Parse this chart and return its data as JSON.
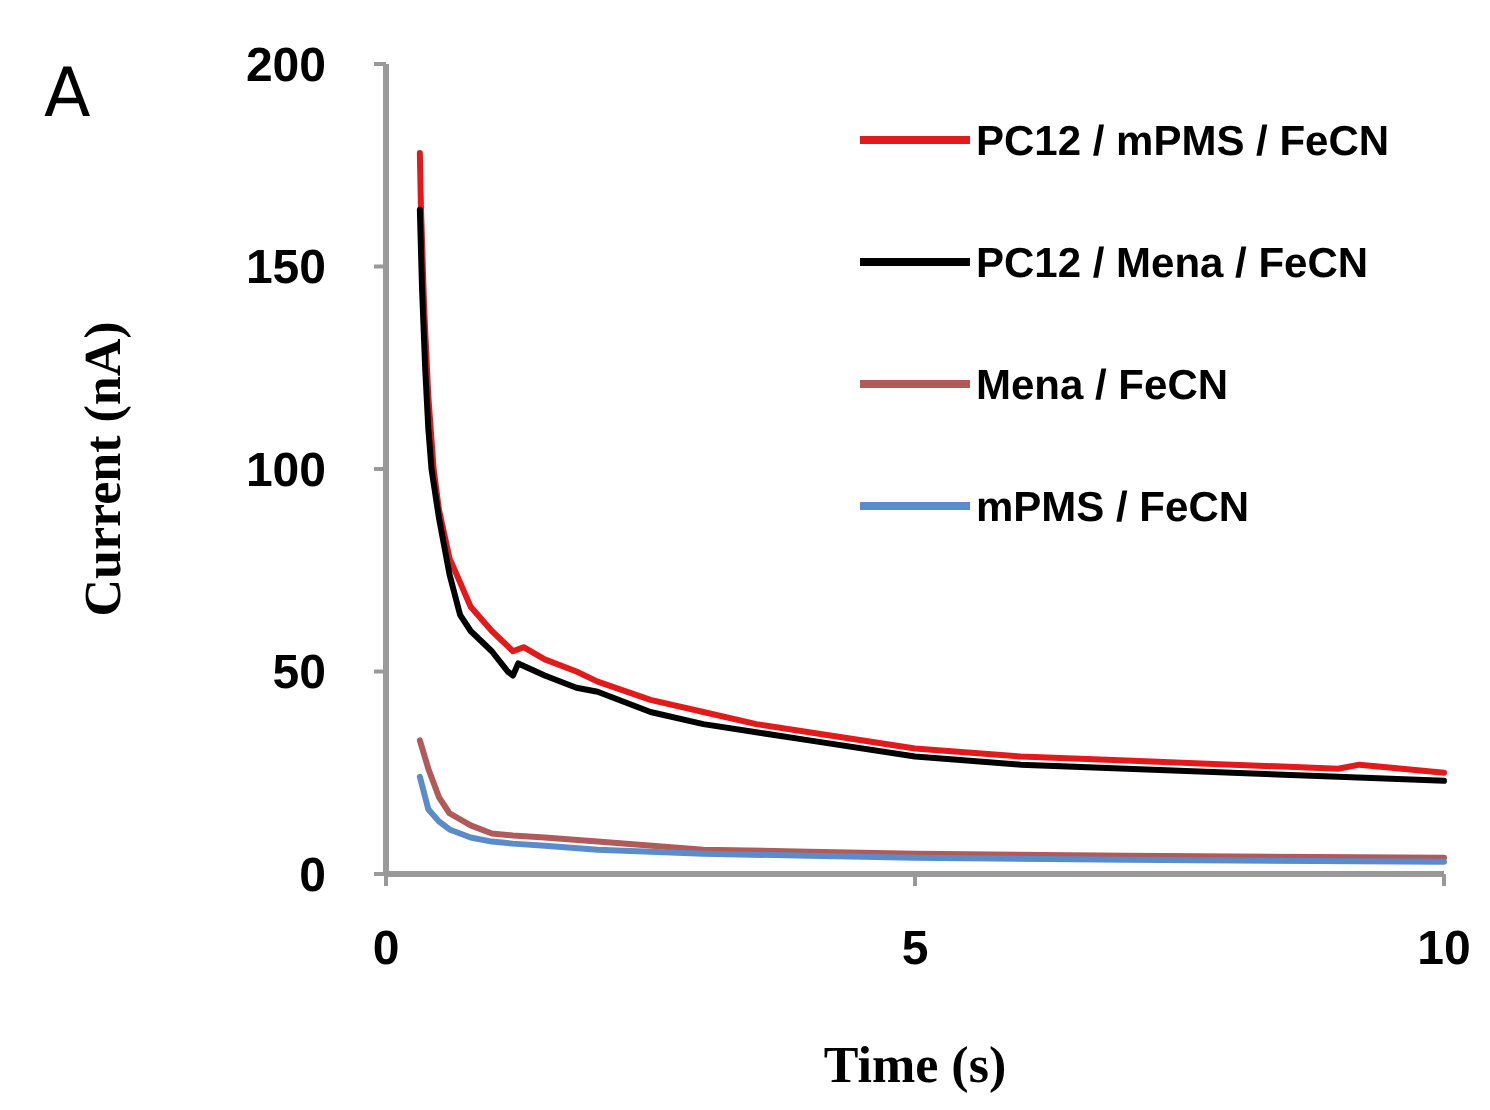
{
  "chart_data": {
    "type": "line",
    "title": "A",
    "xlabel": "Time (s)",
    "ylabel": "Current (nA)",
    "xlim": [
      0,
      10
    ],
    "ylim": [
      0,
      200
    ],
    "xticks": [
      0,
      5,
      10
    ],
    "yticks": [
      0,
      50,
      100,
      150,
      200
    ],
    "legend": "top right",
    "grid": false,
    "marker": "none",
    "line_style": "solid",
    "series": [
      {
        "name": "PC12 / mPMS / FeCN",
        "color": "#e31a1c",
        "x": [
          0.32,
          0.33,
          0.36,
          0.4,
          0.45,
          0.5,
          0.6,
          0.7,
          0.8,
          1.0,
          1.2,
          1.3,
          1.5,
          1.8,
          2,
          2.5,
          3,
          3.5,
          4,
          5,
          6,
          7,
          8,
          9,
          9.2,
          10
        ],
        "values": [
          178,
          165,
          140,
          118,
          100,
          90,
          78,
          72,
          66,
          60,
          55,
          56,
          53,
          50,
          47.5,
          43,
          40,
          37,
          35,
          31,
          29,
          28,
          27,
          26,
          27,
          25
        ]
      },
      {
        "name": "PC12 / Mena / FeCN",
        "color": "#000000",
        "x": [
          0.32,
          0.34,
          0.37,
          0.4,
          0.43,
          0.5,
          0.6,
          0.7,
          0.8,
          1.0,
          1.15,
          1.2,
          1.25,
          1.5,
          1.8,
          2,
          2.5,
          3,
          3.5,
          4,
          5,
          6,
          7,
          8,
          9,
          10
        ],
        "values": [
          164,
          145,
          125,
          110,
          100,
          88,
          74,
          64,
          60,
          55,
          50,
          49,
          52,
          49,
          46,
          45,
          40,
          37,
          35,
          33,
          29,
          27,
          26,
          25,
          24,
          23
        ]
      },
      {
        "name": "Mena / FeCN",
        "color": "#b05a5a",
        "x": [
          0.32,
          0.4,
          0.5,
          0.6,
          0.8,
          1,
          1.2,
          1.5,
          2,
          3,
          4,
          5,
          7,
          10
        ],
        "values": [
          33,
          26,
          19,
          15,
          12,
          10,
          9.5,
          9,
          8,
          6,
          5.5,
          5,
          4.5,
          4
        ]
      },
      {
        "name": "mPMS / FeCN",
        "color": "#5b8bc9",
        "x": [
          0.32,
          0.36,
          0.4,
          0.5,
          0.6,
          0.8,
          1,
          1.2,
          1.5,
          2,
          3,
          4,
          5,
          7,
          10
        ],
        "values": [
          24,
          20,
          16,
          13,
          11,
          9,
          8,
          7.5,
          7,
          6,
          5,
          4.5,
          4,
          3.5,
          3
        ]
      }
    ]
  }
}
